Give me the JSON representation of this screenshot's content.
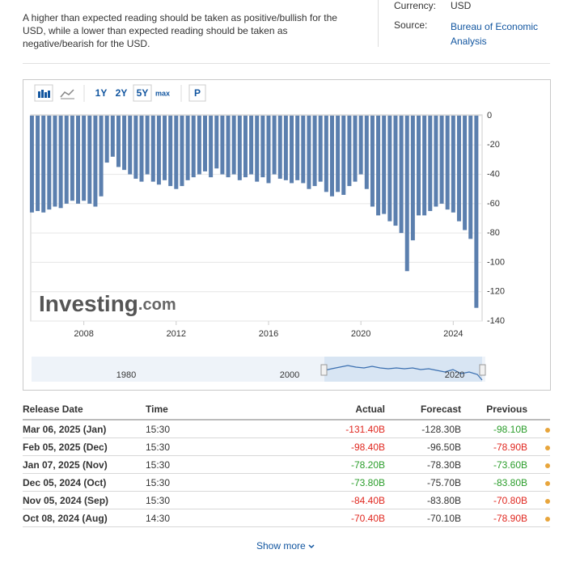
{
  "intro": "A higher than expected reading should be taken as positive/bullish for the USD, while a lower than expected reading should be taken as negative/bearish for the USD.",
  "meta": {
    "currency_label": "Currency:",
    "currency": "USD",
    "source_label": "Source:",
    "source": "Bureau of Economic Analysis"
  },
  "toolbar": {
    "ranges": [
      "1Y",
      "2Y",
      "5Y",
      "max"
    ],
    "p": "P"
  },
  "chart_data": {
    "type": "bar",
    "watermark_brand": "Investing",
    "watermark_suffix": ".com",
    "color": "#5b7fae",
    "x": [
      2005.75,
      2006,
      2006.25,
      2006.5,
      2006.75,
      2007,
      2007.25,
      2007.5,
      2007.75,
      2008,
      2008.25,
      2008.5,
      2008.75,
      2009,
      2009.25,
      2009.5,
      2009.75,
      2010,
      2010.25,
      2010.5,
      2010.75,
      2011,
      2011.25,
      2011.5,
      2011.75,
      2012,
      2012.25,
      2012.5,
      2012.75,
      2013,
      2013.25,
      2013.5,
      2013.75,
      2014,
      2014.25,
      2014.5,
      2014.75,
      2015,
      2015.25,
      2015.5,
      2015.75,
      2016,
      2016.25,
      2016.5,
      2016.75,
      2017,
      2017.25,
      2017.5,
      2017.75,
      2018,
      2018.25,
      2018.5,
      2018.75,
      2019,
      2019.25,
      2019.5,
      2019.75,
      2020,
      2020.25,
      2020.5,
      2020.75,
      2021,
      2021.25,
      2021.5,
      2021.75,
      2022,
      2022.25,
      2022.5,
      2022.75,
      2023,
      2023.25,
      2023.5,
      2023.75,
      2024,
      2024.25,
      2024.5,
      2024.75,
      2025
    ],
    "values": [
      -66,
      -65,
      -66,
      -64,
      -62,
      -63,
      -60,
      -58,
      -60,
      -58,
      -60,
      -62,
      -55,
      -32,
      -28,
      -35,
      -37,
      -40,
      -43,
      -45,
      -40,
      -45,
      -47,
      -44,
      -48,
      -50,
      -48,
      -44,
      -42,
      -40,
      -38,
      -42,
      -36,
      -40,
      -42,
      -40,
      -44,
      -42,
      -40,
      -45,
      -42,
      -46,
      -40,
      -43,
      -44,
      -46,
      -44,
      -46,
      -50,
      -48,
      -45,
      -52,
      -55,
      -52,
      -54,
      -48,
      -45,
      -40,
      -50,
      -62,
      -68,
      -67,
      -72,
      -75,
      -80,
      -106,
      -85,
      -68,
      -68,
      -65,
      -62,
      -60,
      -64,
      -66,
      -72,
      -78,
      -84,
      -131
    ],
    "xlim": [
      2005.7,
      2025.25
    ],
    "xticks": [
      2008,
      2012,
      2016,
      2020,
      2024
    ],
    "ylim": [
      -140,
      0
    ],
    "yticks": [
      0,
      -20,
      -40,
      -60,
      -80,
      -100,
      -120,
      -140
    ],
    "grid": true,
    "navigator_labels": [
      "1980",
      "2000",
      "2020"
    ]
  },
  "table": {
    "header": [
      "Release Date",
      "Time",
      "Actual",
      "Forecast",
      "Previous"
    ],
    "rows": [
      [
        "Mar 06, 2025 (Jan)",
        "15:30",
        "-131.40B",
        "-128.30B",
        "-98.10B"
      ],
      [
        "Feb 05, 2025 (Dec)",
        "15:30",
        "-98.40B",
        "-96.50B",
        "-78.90B"
      ],
      [
        "Jan 07, 2025 (Nov)",
        "15:30",
        "-78.20B",
        "-78.30B",
        "-73.60B"
      ],
      [
        "Dec 05, 2024 (Oct)",
        "15:30",
        "-73.80B",
        "-75.70B",
        "-83.80B"
      ],
      [
        "Nov 05, 2024 (Sep)",
        "15:30",
        "-84.40B",
        "-83.80B",
        "-70.80B"
      ],
      [
        "Oct 08, 2024 (Aug)",
        "14:30",
        "-70.40B",
        "-70.10B",
        "-78.90B"
      ]
    ],
    "actual_colors": [
      "#e0271f",
      "#e0271f",
      "#2a9d2a",
      "#2a9d2a",
      "#e0271f",
      "#e0271f"
    ],
    "previous_colors": [
      "#2a9d2a",
      "#e0271f",
      "#2a9d2a",
      "#2a9d2a",
      "#e0271f",
      "#e0271f"
    ]
  },
  "show_more": "Show more"
}
